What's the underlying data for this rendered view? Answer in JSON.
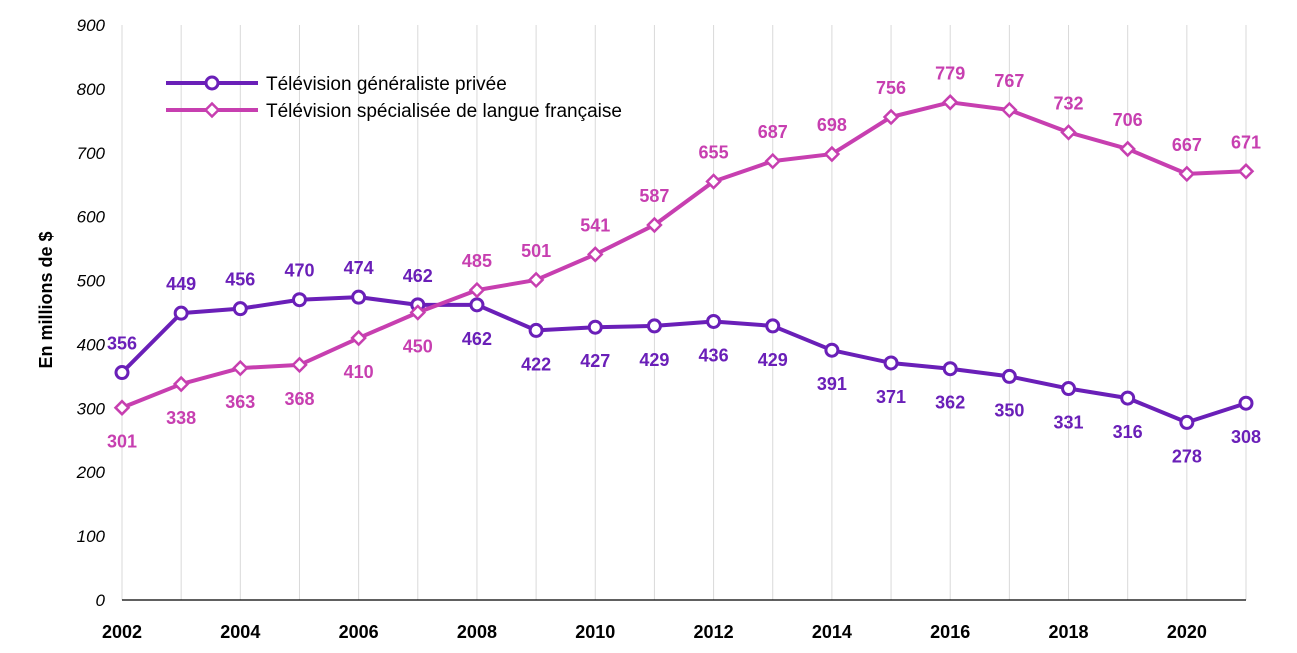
{
  "chart_data": {
    "type": "line",
    "ylabel": "En millions de $",
    "xlabel": "",
    "ylim": [
      0,
      900
    ],
    "yticks": [
      0,
      100,
      200,
      300,
      400,
      500,
      600,
      700,
      800,
      900
    ],
    "x": [
      2002,
      2003,
      2004,
      2005,
      2006,
      2007,
      2008,
      2009,
      2010,
      2011,
      2012,
      2013,
      2014,
      2015,
      2016,
      2017,
      2018,
      2019,
      2020,
      2021
    ],
    "xtick_labels": [
      "2002",
      "2004",
      "2006",
      "2008",
      "2010",
      "2012",
      "2014",
      "2016",
      "2018",
      "2020"
    ],
    "grid": "vertical",
    "legend": "top-left",
    "series": [
      {
        "name": "Télévision généraliste privée",
        "color": "#6a1fb8",
        "marker": "circle",
        "values": [
          356,
          449,
          456,
          470,
          474,
          462,
          462,
          422,
          427,
          429,
          436,
          429,
          391,
          371,
          362,
          350,
          331,
          316,
          278,
          308
        ],
        "labels": [
          "356",
          "449",
          "456",
          "470",
          "474",
          "462",
          "462",
          "422",
          "427",
          "429",
          "436",
          "429",
          "391",
          "371",
          "362",
          "350",
          "331",
          "316",
          "278",
          "308"
        ]
      },
      {
        "name": "Télévision spécialisée de langue française",
        "color": "#c73fb0",
        "marker": "diamond",
        "values": [
          301,
          338,
          363,
          368,
          410,
          450,
          485,
          501,
          541,
          587,
          655,
          687,
          698,
          756,
          779,
          767,
          732,
          706,
          667,
          671
        ],
        "labels": [
          "301",
          "338",
          "363",
          "368",
          "410",
          "450",
          "485",
          "501",
          "541",
          "587",
          "655",
          "687",
          "698",
          "756",
          "779",
          "767",
          "732",
          "706",
          "667",
          "671"
        ]
      }
    ]
  }
}
